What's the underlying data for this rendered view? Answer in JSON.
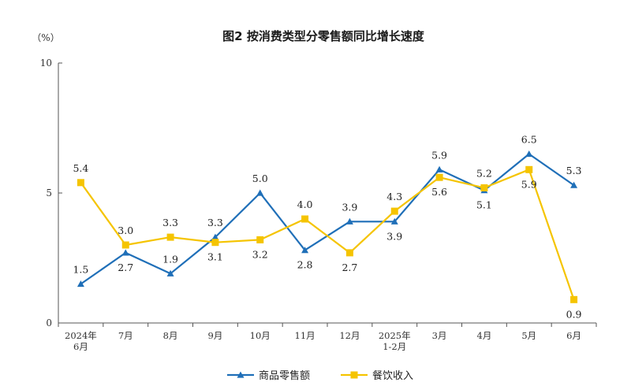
{
  "chart_data": {
    "type": "line",
    "title": "图2 按消费类型分零售额同比增长速度",
    "ylabel": "（%）",
    "ylim": [
      0,
      10
    ],
    "yticks": [
      0,
      5,
      10
    ],
    "categories": [
      [
        "2024年",
        "6月"
      ],
      [
        "7月"
      ],
      [
        "8月"
      ],
      [
        "9月"
      ],
      [
        "10月"
      ],
      [
        "11月"
      ],
      [
        "12月"
      ],
      [
        "2025年",
        "1-2月"
      ],
      [
        "3月"
      ],
      [
        "4月"
      ],
      [
        "5月"
      ],
      [
        "6月"
      ]
    ],
    "series": [
      {
        "name": "商品零售额",
        "color": "#1f6fb8",
        "marker": "triangle",
        "values": [
          1.5,
          2.7,
          1.9,
          3.3,
          5.0,
          2.8,
          3.9,
          3.9,
          5.9,
          5.1,
          6.5,
          5.3
        ],
        "label_pos": [
          "above",
          "below",
          "above",
          "above",
          "above",
          "below",
          "above",
          "below",
          "above",
          "below",
          "above",
          "above"
        ]
      },
      {
        "name": "餐饮收入",
        "color": "#f5c400",
        "marker": "square",
        "values": [
          5.4,
          3.0,
          3.3,
          3.1,
          3.2,
          4.0,
          2.7,
          4.3,
          5.6,
          5.2,
          5.9,
          0.9
        ],
        "label_pos": [
          "above",
          "above",
          "above",
          "below",
          "below",
          "above",
          "below",
          "above",
          "below",
          "above",
          "below",
          "below"
        ]
      }
    ],
    "legend": "bottom-center",
    "grid": false
  }
}
